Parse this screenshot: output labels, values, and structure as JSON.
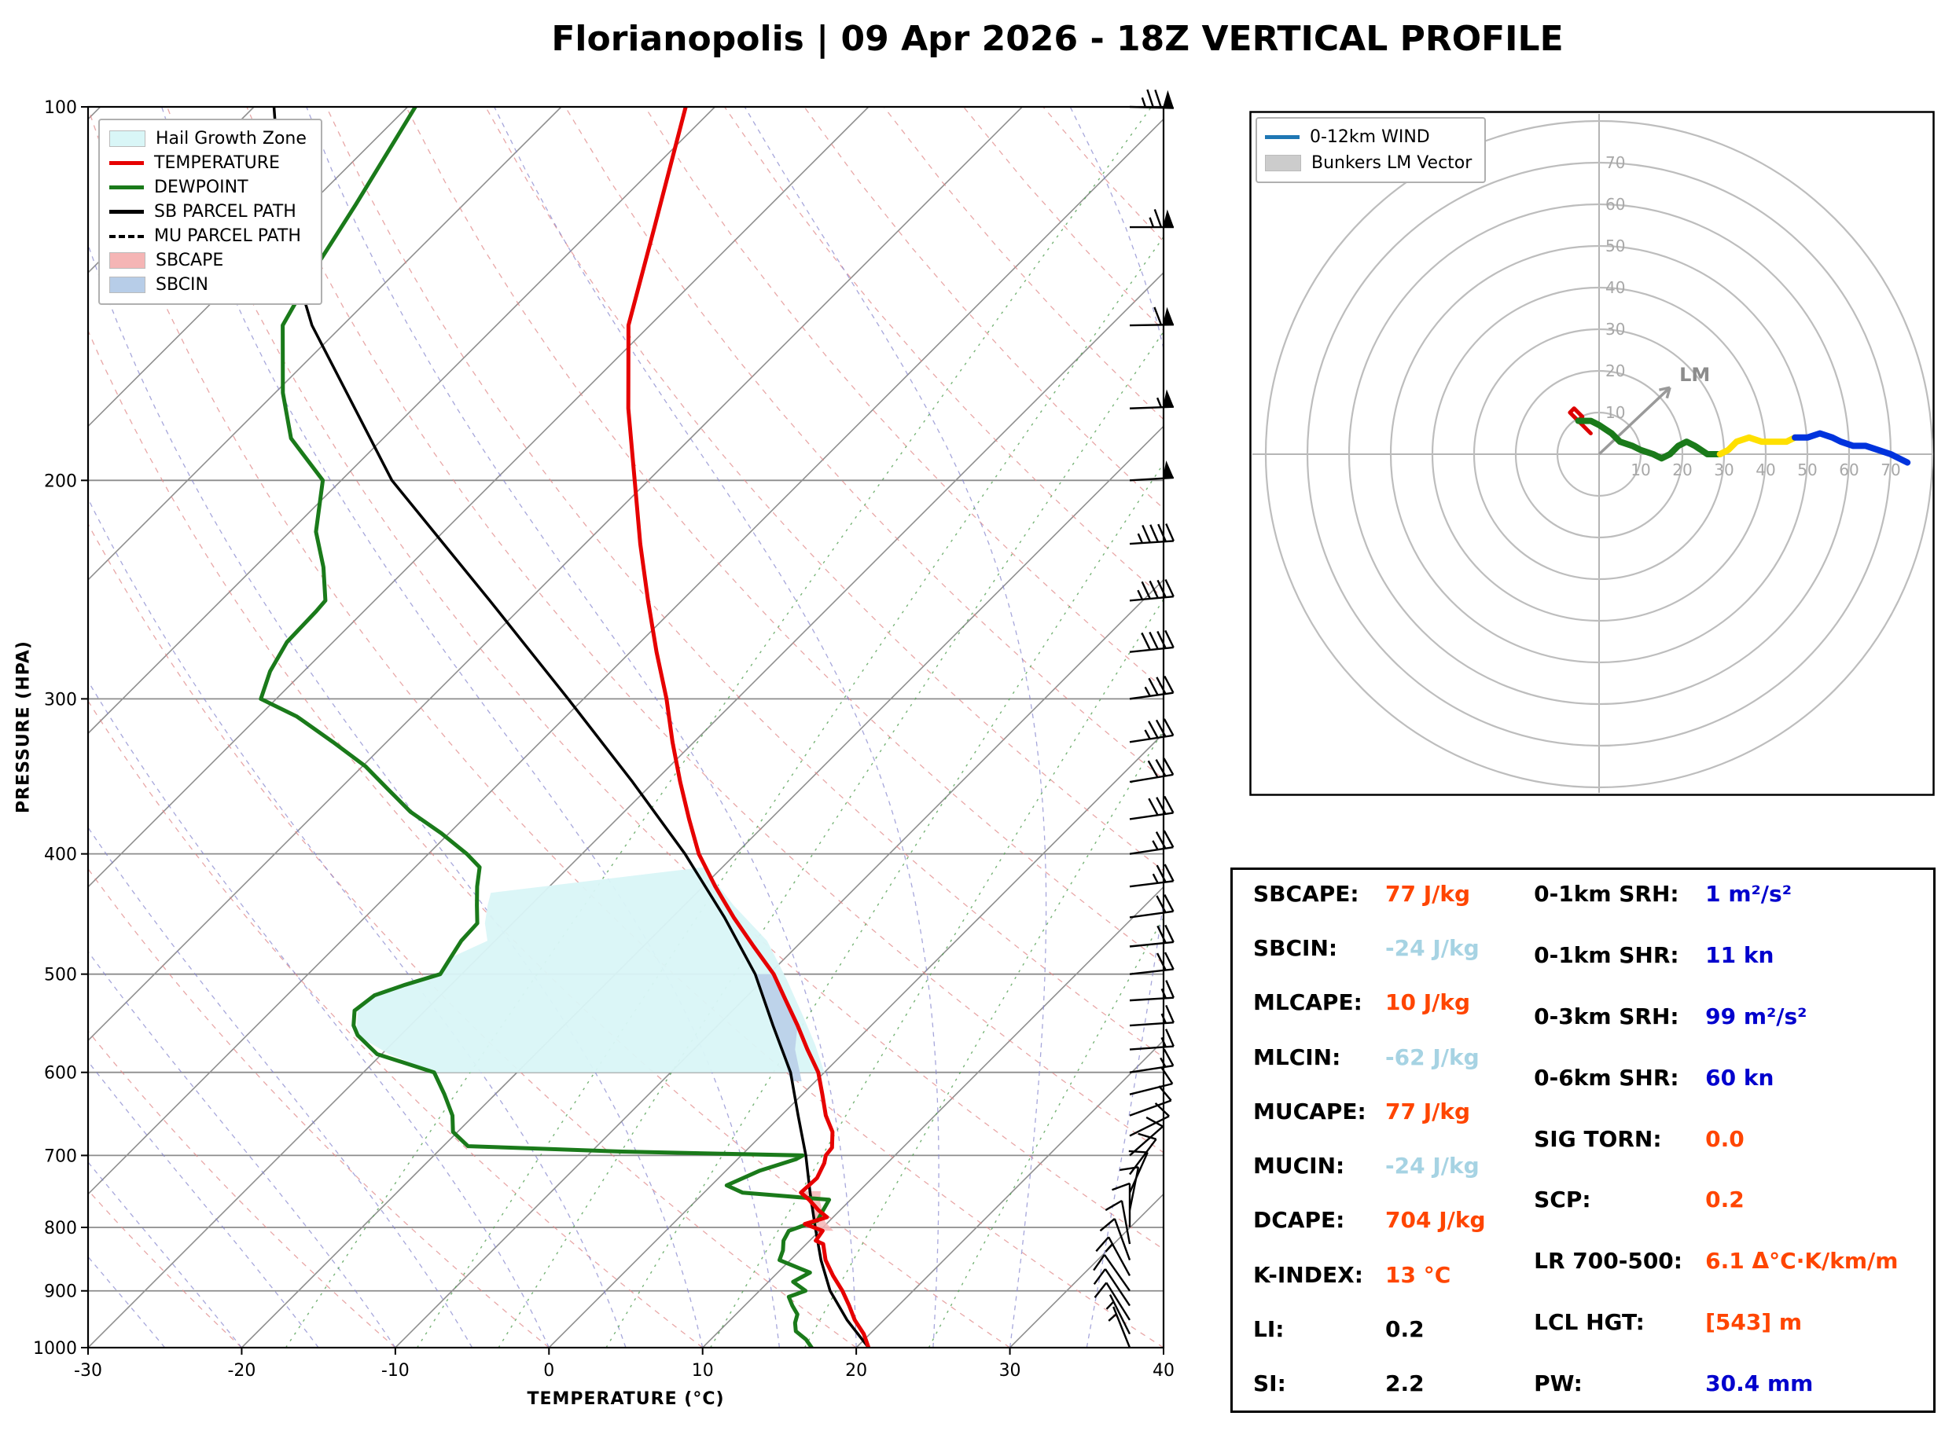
{
  "title": "Florianopolis | 09 Apr 2026 - 18Z VERTICAL PROFILE",
  "colors": {
    "orange": "#ff4500",
    "lightblue": "#a6d3e3",
    "blue": "#0000cd",
    "black": "#000000",
    "temperature": "#e60000",
    "dewpoint": "#1a7a1a",
    "parcel": "#000000",
    "hail_zone": "#d9f6f7",
    "sbcape_fill": "#f5b5b5",
    "sbcin_fill": "#b7cde8"
  },
  "skewt": {
    "xlabel": "TEMPERATURE (°C)",
    "ylabel": "PRESSURE (HPA)",
    "x_ticks": [
      -30,
      -20,
      -10,
      0,
      10,
      20,
      30,
      40
    ],
    "p_ticks": [
      100,
      200,
      300,
      400,
      500,
      600,
      700,
      800,
      900,
      1000
    ],
    "legend": [
      {
        "label": "Hail Growth Zone",
        "swatch": "patch",
        "color": "#d9f6f7"
      },
      {
        "label": "TEMPERATURE",
        "swatch": "line",
        "color": "#e60000"
      },
      {
        "label": "DEWPOINT",
        "swatch": "line",
        "color": "#1a7a1a"
      },
      {
        "label": "SB PARCEL PATH",
        "swatch": "line",
        "color": "#000000"
      },
      {
        "label": "MU PARCEL PATH",
        "swatch": "dashed",
        "color": "#000000"
      },
      {
        "label": "SBCAPE",
        "swatch": "patch",
        "color": "#f5b5b5"
      },
      {
        "label": "SBCIN",
        "swatch": "patch",
        "color": "#b7cde8"
      }
    ]
  },
  "hodograph": {
    "legend": [
      {
        "label": "0-12km WIND",
        "swatch": "line",
        "color": "#1f77b4"
      },
      {
        "label": "Bunkers LM Vector",
        "swatch": "patch",
        "color": "#cccccc"
      }
    ],
    "ring_labels": [
      10,
      20,
      30,
      40,
      50,
      60,
      70
    ],
    "lm_label": "LM"
  },
  "stats": {
    "left": [
      {
        "label": "SBCAPE:",
        "value": "77 J/kg",
        "color": "orange"
      },
      {
        "label": "SBCIN:",
        "value": "-24 J/kg",
        "color": "lightblue"
      },
      {
        "label": "MLCAPE:",
        "value": "10 J/kg",
        "color": "orange"
      },
      {
        "label": "MLCIN:",
        "value": "-62 J/kg",
        "color": "lightblue"
      },
      {
        "label": "MUCAPE:",
        "value": "77 J/kg",
        "color": "orange"
      },
      {
        "label": "MUCIN:",
        "value": "-24 J/kg",
        "color": "lightblue"
      },
      {
        "label": "DCAPE:",
        "value": "704 J/kg",
        "color": "orange"
      },
      {
        "label": "K-INDEX:",
        "value": "13 °C",
        "color": "orange"
      },
      {
        "label": "LI:",
        "value": "0.2",
        "color": "black"
      },
      {
        "label": "SI:",
        "value": "2.2",
        "color": "black"
      }
    ],
    "right": [
      {
        "label": "0-1km SRH:",
        "value": "1 m²/s²",
        "color": "blue"
      },
      {
        "label": "0-1km SHR:",
        "value": "11 kn",
        "color": "blue"
      },
      {
        "label": "0-3km SRH:",
        "value": "99 m²/s²",
        "color": "blue"
      },
      {
        "label": "0-6km SHR:",
        "value": "60 kn",
        "color": "blue"
      },
      {
        "label": "SIG TORN:",
        "value": "0.0",
        "color": "orange"
      },
      {
        "label": "SCP:",
        "value": "0.2",
        "color": "orange"
      },
      {
        "label": "LR 700-500:",
        "value": "6.1 Δ°C·K/km/m",
        "color": "orange"
      },
      {
        "label": "LCL HGT:",
        "value": "[543] m",
        "color": "orange"
      },
      {
        "label": "PW:",
        "value": "30.4 mm",
        "color": "blue"
      }
    ]
  },
  "chart_data": [
    {
      "type": "skewt",
      "title": "Florianopolis | 09 Apr 2026 - 18Z VERTICAL PROFILE",
      "xlabel": "TEMPERATURE (°C)",
      "ylabel": "PRESSURE (HPA)",
      "temp_axis_range_c": [
        -30,
        40
      ],
      "pressure_range_hpa": [
        100,
        1000
      ],
      "skew_c_per_decade": 80.8,
      "temperature_c": [
        [
          1000,
          20.8
        ],
        [
          975,
          19.6
        ],
        [
          950,
          18.1
        ],
        [
          925,
          16.8
        ],
        [
          900,
          15.4
        ],
        [
          875,
          13.8
        ],
        [
          850,
          12.3
        ],
        [
          825,
          11.1
        ],
        [
          820,
          10.4
        ],
        [
          805,
          10.2
        ],
        [
          795,
          8.6
        ],
        [
          785,
          9.6
        ],
        [
          775,
          8.6
        ],
        [
          760,
          7.3
        ],
        [
          750,
          6.3
        ],
        [
          730,
          6.4
        ],
        [
          710,
          5.9
        ],
        [
          700,
          5.5
        ],
        [
          690,
          5.4
        ],
        [
          670,
          4.4
        ],
        [
          650,
          2.9
        ],
        [
          625,
          1.3
        ],
        [
          600,
          -0.4
        ],
        [
          575,
          -2.6
        ],
        [
          550,
          -4.8
        ],
        [
          525,
          -7.2
        ],
        [
          500,
          -9.7
        ],
        [
          475,
          -12.8
        ],
        [
          450,
          -16.0
        ],
        [
          425,
          -19.2
        ],
        [
          400,
          -22.4
        ],
        [
          375,
          -25.3
        ],
        [
          350,
          -28.3
        ],
        [
          325,
          -31.4
        ],
        [
          300,
          -34.6
        ],
        [
          275,
          -38.3
        ],
        [
          250,
          -42.2
        ],
        [
          225,
          -46.4
        ],
        [
          200,
          -50.9
        ],
        [
          175,
          -56.0
        ],
        [
          150,
          -61.4
        ],
        [
          125,
          -66.1
        ],
        [
          100,
          -71.9
        ]
      ],
      "dewpoint_c": [
        [
          1000,
          17.1
        ],
        [
          985,
          16.2
        ],
        [
          970,
          15.0
        ],
        [
          955,
          14.4
        ],
        [
          940,
          14.0
        ],
        [
          925,
          13.1
        ],
        [
          910,
          12.3
        ],
        [
          900,
          13.0
        ],
        [
          885,
          11.6
        ],
        [
          870,
          12.1
        ],
        [
          850,
          9.3
        ],
        [
          835,
          8.9
        ],
        [
          820,
          8.3
        ],
        [
          805,
          8.0
        ],
        [
          790,
          9.2
        ],
        [
          775,
          8.9
        ],
        [
          760,
          8.6
        ],
        [
          750,
          2.5
        ],
        [
          740,
          1.0
        ],
        [
          720,
          2.2
        ],
        [
          705,
          3.8
        ],
        [
          700,
          4.0
        ],
        [
          695,
          -8.0
        ],
        [
          688,
          -18.4
        ],
        [
          670,
          -20.3
        ],
        [
          650,
          -21.4
        ],
        [
          625,
          -23.3
        ],
        [
          600,
          -25.4
        ],
        [
          580,
          -30.3
        ],
        [
          560,
          -32.8
        ],
        [
          550,
          -33.7
        ],
        [
          535,
          -34.6
        ],
        [
          520,
          -34.3
        ],
        [
          510,
          -33.0
        ],
        [
          500,
          -31.4
        ],
        [
          485,
          -31.8
        ],
        [
          470,
          -32.2
        ],
        [
          455,
          -32.3
        ],
        [
          440,
          -33.5
        ],
        [
          425,
          -34.7
        ],
        [
          410,
          -35.8
        ],
        [
          400,
          -37.5
        ],
        [
          385,
          -40.5
        ],
        [
          370,
          -43.9
        ],
        [
          355,
          -46.8
        ],
        [
          340,
          -49.8
        ],
        [
          325,
          -53.5
        ],
        [
          310,
          -57.5
        ],
        [
          300,
          -61.0
        ],
        [
          285,
          -62.2
        ],
        [
          270,
          -63.0
        ],
        [
          255,
          -63.1
        ],
        [
          250,
          -63.2
        ],
        [
          235,
          -65.5
        ],
        [
          220,
          -68.3
        ],
        [
          200,
          -71.2
        ],
        [
          185,
          -76.0
        ],
        [
          170,
          -79.5
        ],
        [
          150,
          -83.9
        ],
        [
          135,
          -85.5
        ],
        [
          120,
          -87.0
        ],
        [
          100,
          -89.5
        ]
      ],
      "sb_parcel_c": [
        [
          1000,
          20.8
        ],
        [
          950,
          17.6
        ],
        [
          900,
          14.6
        ],
        [
          850,
          12.0
        ],
        [
          800,
          9.5
        ],
        [
          750,
          6.9
        ],
        [
          700,
          4.2
        ],
        [
          650,
          1.1
        ],
        [
          600,
          -2.2
        ],
        [
          550,
          -6.4
        ],
        [
          500,
          -10.9
        ],
        [
          450,
          -16.6
        ],
        [
          400,
          -23.3
        ],
        [
          350,
          -31.4
        ],
        [
          300,
          -41.0
        ],
        [
          250,
          -52.5
        ],
        [
          200,
          -66.7
        ],
        [
          150,
          -82.0
        ],
        [
          125,
          -90.3
        ],
        [
          100,
          -98.7
        ]
      ],
      "mu_parcel_c": [
        [
          1000,
          20.8
        ],
        [
          950,
          17.6
        ],
        [
          900,
          14.6
        ],
        [
          850,
          12.0
        ],
        [
          800,
          9.5
        ],
        [
          750,
          6.9
        ],
        [
          700,
          4.2
        ],
        [
          650,
          1.1
        ],
        [
          600,
          -2.2
        ],
        [
          550,
          -6.4
        ],
        [
          500,
          -10.9
        ],
        [
          450,
          -16.6
        ],
        [
          400,
          -23.3
        ],
        [
          350,
          -31.4
        ],
        [
          300,
          -41.0
        ],
        [
          250,
          -52.5
        ],
        [
          200,
          -66.7
        ],
        [
          150,
          -82.0
        ],
        [
          125,
          -90.3
        ],
        [
          100,
          -98.7
        ]
      ],
      "hail_zone_poly": [
        [
          430,
          -33.4
        ],
        [
          410,
          -21.2
        ],
        [
          440,
          -16.8
        ],
        [
          470,
          -12.3
        ],
        [
          505,
          -8.5
        ],
        [
          540,
          -5.1
        ],
        [
          570,
          -2.4
        ],
        [
          600,
          0.0
        ],
        [
          600,
          -25.4
        ],
        [
          580,
          -29.5
        ],
        [
          560,
          -32.9
        ],
        [
          535,
          -34.4
        ],
        [
          515,
          -34.0
        ],
        [
          500,
          -31.4
        ],
        [
          485,
          -31.8
        ],
        [
          470,
          -30.5
        ],
        [
          455,
          -31.8
        ],
        [
          440,
          -32.8
        ]
      ],
      "sbcape_poly": [
        [
          805,
          9.7
        ],
        [
          790,
          8.9
        ],
        [
          775,
          8.2
        ],
        [
          760,
          7.2
        ],
        [
          748,
          6.3
        ],
        [
          748,
          7.5
        ],
        [
          762,
          8.1
        ],
        [
          778,
          9.0
        ],
        [
          792,
          9.8
        ],
        [
          805,
          10.9
        ]
      ],
      "sbcin_poly": [
        [
          610,
          -0.9
        ],
        [
          575,
          -3.4
        ],
        [
          550,
          -4.8
        ],
        [
          525,
          -7.2
        ],
        [
          500,
          -9.7
        ],
        [
          500,
          -10.9
        ],
        [
          525,
          -8.6
        ],
        [
          550,
          -6.4
        ],
        [
          575,
          -4.3
        ],
        [
          610,
          -1.6
        ]
      ],
      "wind_barbs_kn": [
        [
          1000,
          -2,
          5
        ],
        [
          975,
          -3,
          6
        ],
        [
          950,
          -5,
          8
        ],
        [
          925,
          -6,
          9
        ],
        [
          900,
          -7,
          10
        ],
        [
          875,
          -6,
          11
        ],
        [
          850,
          -4,
          11
        ],
        [
          825,
          -2,
          11
        ],
        [
          800,
          0,
          11
        ],
        [
          775,
          2,
          10
        ],
        [
          750,
          4,
          9
        ],
        [
          725,
          6,
          8
        ],
        [
          700,
          8,
          7
        ],
        [
          675,
          10,
          5
        ],
        [
          650,
          11,
          4
        ],
        [
          625,
          12,
          3
        ],
        [
          600,
          13,
          2
        ],
        [
          575,
          14,
          1
        ],
        [
          550,
          15,
          1
        ],
        [
          525,
          16,
          1
        ],
        [
          500,
          18,
          2
        ],
        [
          475,
          20,
          2
        ],
        [
          450,
          22,
          3
        ],
        [
          425,
          24,
          3
        ],
        [
          400,
          26,
          4
        ],
        [
          375,
          28,
          4
        ],
        [
          350,
          30,
          5
        ],
        [
          325,
          33,
          5
        ],
        [
          300,
          36,
          5
        ],
        [
          275,
          39,
          4
        ],
        [
          250,
          43,
          4
        ],
        [
          225,
          46,
          3
        ],
        [
          200,
          50,
          3
        ],
        [
          175,
          55,
          2
        ],
        [
          150,
          60,
          1
        ],
        [
          125,
          67,
          0
        ],
        [
          100,
          73,
          -2
        ]
      ]
    },
    {
      "type": "hodograph",
      "units": "kn",
      "rings": [
        10,
        20,
        30,
        40,
        50,
        60,
        70,
        80
      ],
      "segments": [
        {
          "name": "0-1km",
          "color": "#dd0000",
          "width": 5,
          "points": [
            [
              -2,
              5
            ],
            [
              -4,
              7
            ],
            [
              -6,
              9
            ],
            [
              -7,
              10
            ],
            [
              -6,
              11
            ],
            [
              -5,
              10
            ],
            [
              -4,
              9
            ],
            [
              -5,
              8
            ]
          ]
        },
        {
          "name": "1-3km",
          "color": "#1a7a1a",
          "width": 8,
          "points": [
            [
              -5,
              8
            ],
            [
              -2,
              8
            ],
            [
              0,
              7
            ],
            [
              3,
              5
            ],
            [
              5,
              3
            ],
            [
              8,
              2
            ],
            [
              10,
              1
            ],
            [
              13,
              0
            ],
            [
              15,
              -1
            ],
            [
              17,
              0
            ],
            [
              19,
              2
            ],
            [
              21,
              3
            ],
            [
              23,
              2
            ],
            [
              26,
              0
            ],
            [
              29,
              0
            ]
          ]
        },
        {
          "name": "3-6km",
          "color": "#ffe000",
          "width": 8,
          "points": [
            [
              29,
              0
            ],
            [
              31,
              1
            ],
            [
              33,
              3
            ],
            [
              36,
              4
            ],
            [
              39,
              3
            ],
            [
              42,
              3
            ],
            [
              45,
              3
            ],
            [
              47,
              4
            ]
          ]
        },
        {
          "name": "6-12km",
          "color": "#0033dd",
          "width": 8,
          "points": [
            [
              47,
              4
            ],
            [
              50,
              4
            ],
            [
              53,
              5
            ],
            [
              56,
              4
            ],
            [
              58,
              3
            ],
            [
              61,
              2
            ],
            [
              64,
              2
            ],
            [
              67,
              1
            ],
            [
              70,
              0
            ],
            [
              72,
              -1
            ],
            [
              74,
              -2
            ]
          ]
        }
      ],
      "lm_vector": [
        17,
        16
      ]
    }
  ]
}
